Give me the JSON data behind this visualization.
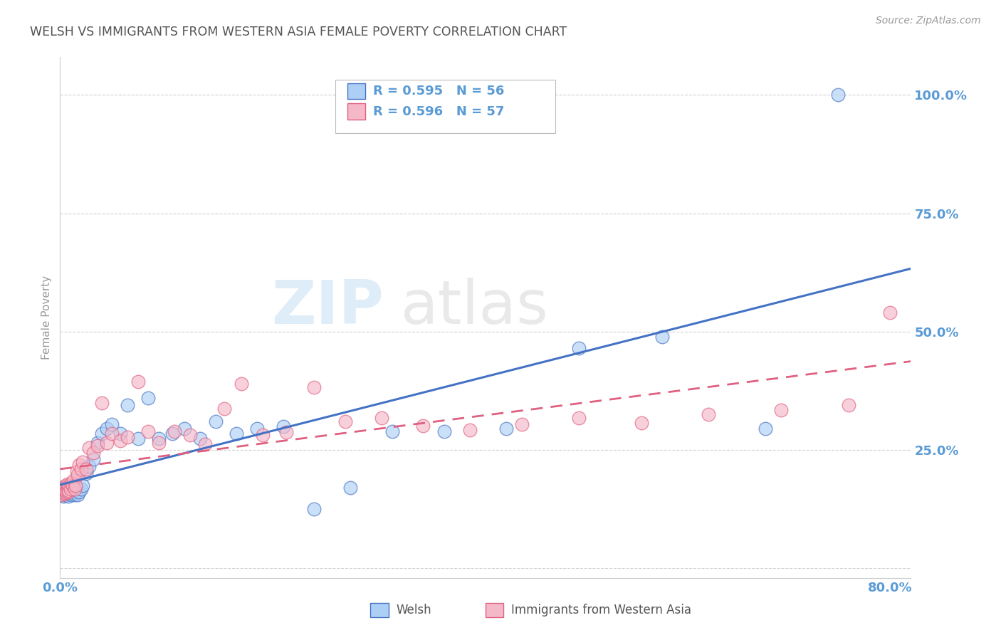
{
  "title": "WELSH VS IMMIGRANTS FROM WESTERN ASIA FEMALE POVERTY CORRELATION CHART",
  "source": "Source: ZipAtlas.com",
  "ylabel_label": "Female Poverty",
  "legend_label1": "Welsh",
  "legend_label2": "Immigrants from Western Asia",
  "R1": "0.595",
  "N1": "56",
  "R2": "0.596",
  "N2": "57",
  "blue_color": "#aecff5",
  "pink_color": "#f5b8c8",
  "blue_line_color": "#4472c4",
  "pink_line_color": "#e06080",
  "title_color": "#555555",
  "axis_label_color": "#5b9bd5",
  "background_color": "#ffffff",
  "grid_color": "#cccccc",
  "welsh_x": [
    0.001,
    0.002,
    0.003,
    0.003,
    0.004,
    0.004,
    0.005,
    0.005,
    0.006,
    0.006,
    0.007,
    0.007,
    0.008,
    0.008,
    0.009,
    0.009,
    0.01,
    0.01,
    0.011,
    0.012,
    0.013,
    0.014,
    0.015,
    0.016,
    0.017,
    0.018,
    0.02,
    0.022,
    0.025,
    0.028,
    0.032,
    0.036,
    0.04,
    0.045,
    0.05,
    0.058,
    0.065,
    0.075,
    0.085,
    0.095,
    0.108,
    0.12,
    0.135,
    0.15,
    0.17,
    0.19,
    0.215,
    0.245,
    0.28,
    0.32,
    0.37,
    0.43,
    0.5,
    0.58,
    0.68,
    0.75
  ],
  "welsh_y": [
    0.155,
    0.16,
    0.152,
    0.165,
    0.158,
    0.17,
    0.155,
    0.162,
    0.155,
    0.16,
    0.162,
    0.158,
    0.165,
    0.152,
    0.16,
    0.165,
    0.158,
    0.172,
    0.155,
    0.16,
    0.165,
    0.155,
    0.162,
    0.168,
    0.155,
    0.162,
    0.168,
    0.175,
    0.2,
    0.215,
    0.23,
    0.265,
    0.285,
    0.295,
    0.305,
    0.285,
    0.345,
    0.275,
    0.36,
    0.275,
    0.285,
    0.295,
    0.275,
    0.31,
    0.285,
    0.295,
    0.3,
    0.125,
    0.17,
    0.29,
    0.29,
    0.295,
    0.465,
    0.49,
    0.295,
    1.0
  ],
  "immigrants_x": [
    0.001,
    0.002,
    0.003,
    0.003,
    0.004,
    0.004,
    0.005,
    0.005,
    0.006,
    0.006,
    0.007,
    0.007,
    0.008,
    0.008,
    0.009,
    0.01,
    0.011,
    0.012,
    0.013,
    0.014,
    0.015,
    0.016,
    0.017,
    0.018,
    0.02,
    0.022,
    0.025,
    0.028,
    0.032,
    0.036,
    0.04,
    0.045,
    0.05,
    0.058,
    0.065,
    0.075,
    0.085,
    0.095,
    0.11,
    0.125,
    0.14,
    0.158,
    0.175,
    0.195,
    0.218,
    0.245,
    0.275,
    0.31,
    0.35,
    0.395,
    0.445,
    0.5,
    0.56,
    0.625,
    0.695,
    0.76,
    0.8
  ],
  "immigrants_y": [
    0.16,
    0.155,
    0.162,
    0.17,
    0.158,
    0.165,
    0.162,
    0.175,
    0.16,
    0.165,
    0.17,
    0.178,
    0.162,
    0.165,
    0.175,
    0.168,
    0.18,
    0.175,
    0.185,
    0.168,
    0.175,
    0.205,
    0.198,
    0.218,
    0.21,
    0.225,
    0.21,
    0.255,
    0.245,
    0.26,
    0.35,
    0.265,
    0.285,
    0.27,
    0.278,
    0.395,
    0.29,
    0.265,
    0.29,
    0.282,
    0.262,
    0.338,
    0.39,
    0.282,
    0.288,
    0.382,
    0.31,
    0.318,
    0.302,
    0.292,
    0.305,
    0.318,
    0.308,
    0.325,
    0.335,
    0.345,
    0.54
  ],
  "xlim": [
    0.0,
    0.82
  ],
  "ylim": [
    -0.02,
    1.08
  ],
  "x_ticks": [
    0.0,
    0.2,
    0.4,
    0.6,
    0.8
  ],
  "y_ticks": [
    0.0,
    0.25,
    0.5,
    0.75,
    1.0
  ]
}
